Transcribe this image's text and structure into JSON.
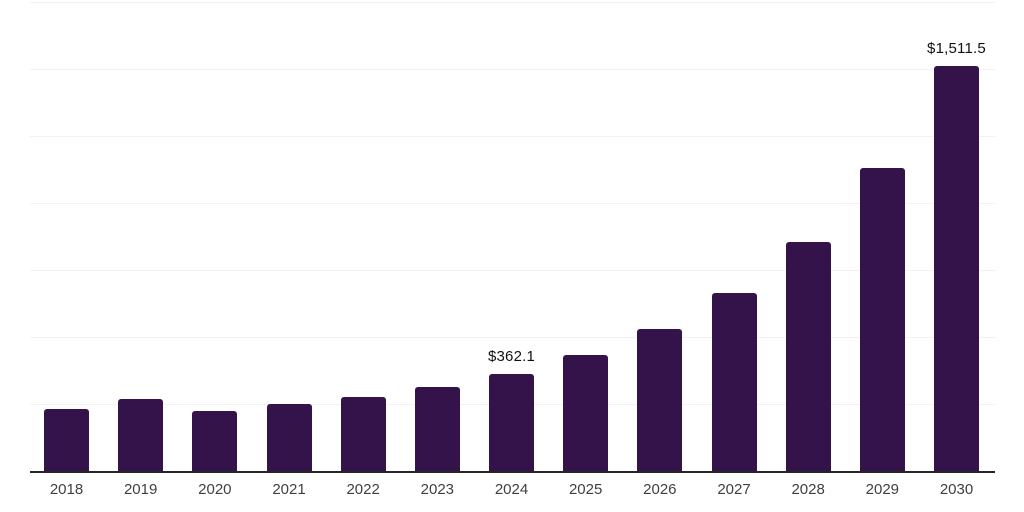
{
  "chart_data": {
    "type": "bar",
    "title": "",
    "xlabel": "",
    "ylabel": "",
    "categories": [
      "2018",
      "2019",
      "2020",
      "2021",
      "2022",
      "2023",
      "2024",
      "2025",
      "2026",
      "2027",
      "2028",
      "2029",
      "2030"
    ],
    "values": [
      232,
      269,
      225,
      251,
      277,
      313,
      362.1,
      432,
      529,
      665,
      855,
      1129,
      1511.5
    ],
    "point_labels": [
      {
        "category": "2024",
        "text": "$362.1"
      },
      {
        "category": "2030",
        "text": "$1,511.5"
      }
    ],
    "ylim": [
      0,
      1750
    ],
    "gridline_interval": 250,
    "grid": true,
    "legend": false,
    "colors": {
      "bar": "#331349",
      "gridline": "#f2f2f2",
      "axis_line": "#262626",
      "tick_label": "#404040",
      "value_label": "#111111",
      "background": "#ffffff"
    }
  }
}
